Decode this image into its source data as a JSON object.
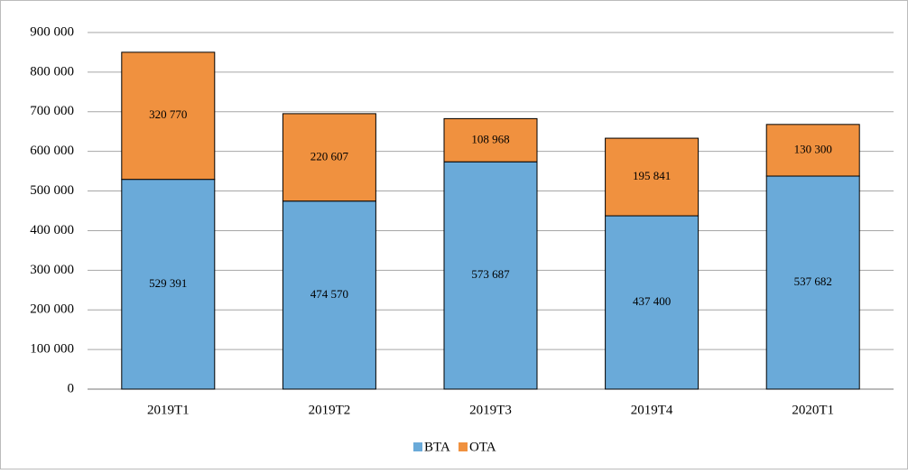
{
  "chart_data": {
    "type": "stacked_bar",
    "categories": [
      "2019T1",
      "2019T2",
      "2019T3",
      "2019T4",
      "2020T1"
    ],
    "series": [
      {
        "name": "BTA",
        "color": "#6aaad9",
        "values": [
          529391,
          474570,
          573687,
          437400,
          537682
        ],
        "value_labels": [
          "529 391",
          "474 570",
          "573 687",
          "437 400",
          "537 682"
        ]
      },
      {
        "name": "OTA",
        "color": "#f0913f",
        "values": [
          320770,
          220607,
          108968,
          195841,
          130300
        ],
        "value_labels": [
          "320 770",
          "220 607",
          "108 968",
          "195 841",
          "130 300"
        ]
      }
    ],
    "ylim": [
      0,
      900000
    ],
    "yticks": [
      0,
      {
        "value": 100000,
        "label": "100 000"
      },
      {
        "value": 200000,
        "label": "200 000"
      },
      {
        "value": 300000,
        "label": "300 000"
      },
      {
        "value": 400000,
        "label": "400 000"
      },
      {
        "value": 500000,
        "label": "500 000"
      },
      {
        "value": 600000,
        "label": "600 000"
      },
      {
        "value": 700000,
        "label": "700 000"
      },
      {
        "value": 800000,
        "label": "800 000"
      },
      {
        "value": 900000,
        "label": "900 000"
      }
    ],
    "grid": true,
    "legend": "bottom"
  }
}
